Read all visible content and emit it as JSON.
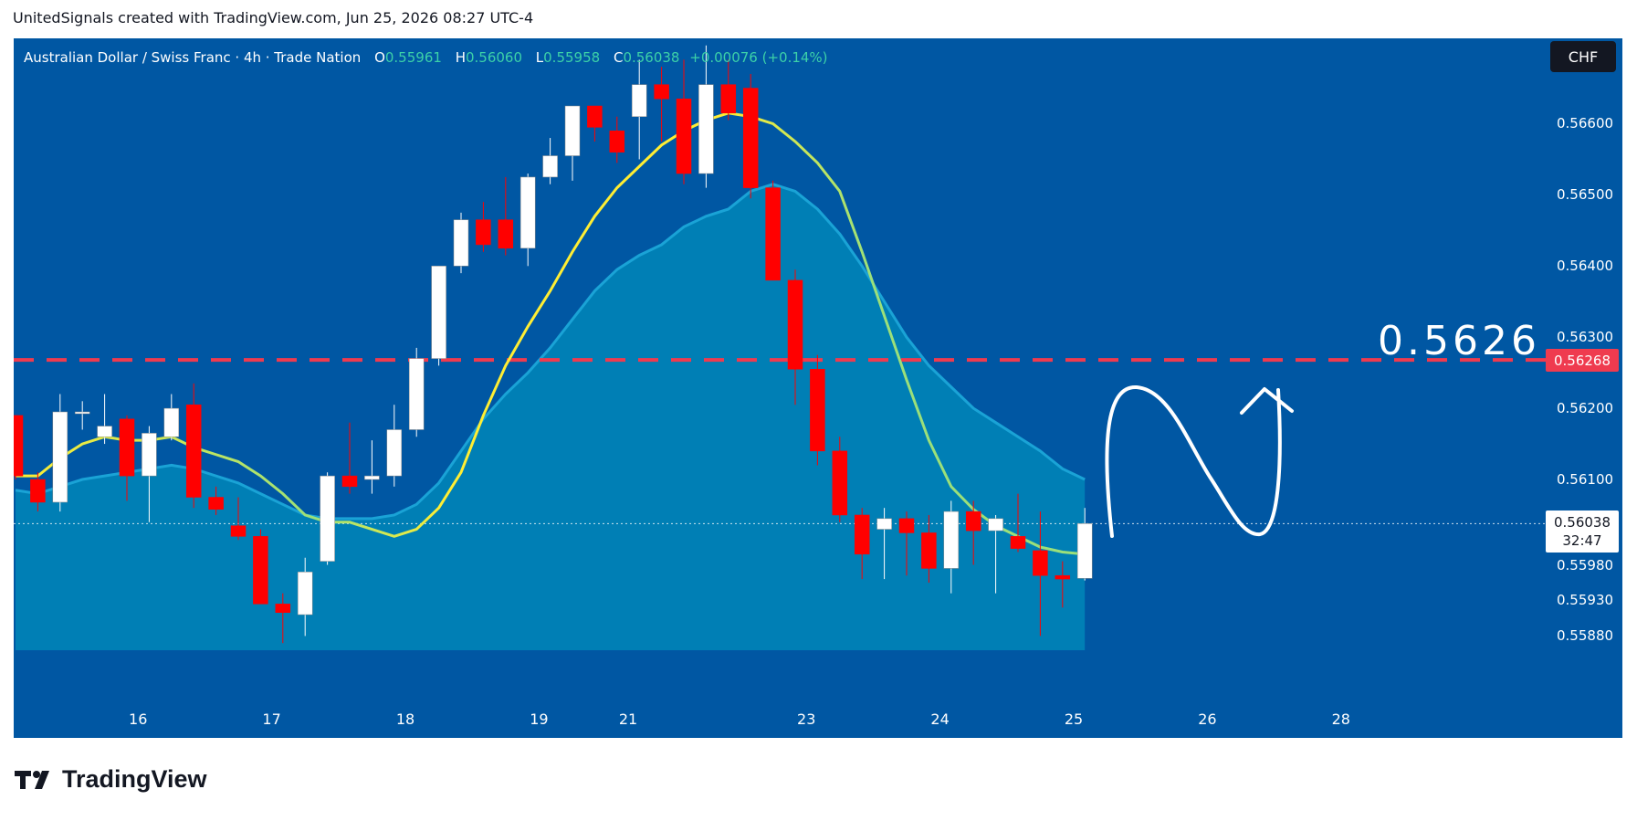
{
  "header": {
    "text": "UnitedSignals created with TradingView.com, Jun 25, 2026 08:27 UTC-4"
  },
  "legend": {
    "symbol": "Australian Dollar / Swiss Franc · 4h · Trade Nation",
    "o_label": "O",
    "o_value": "0.55961",
    "h_label": "H",
    "h_value": "0.56060",
    "l_label": "L",
    "l_value": "0.55958",
    "c_label": "C",
    "c_value": "0.56038",
    "change": "+0.00076 (+0.14%)"
  },
  "currency_badge": "CHF",
  "annotation": {
    "price_text": "0.5626"
  },
  "level_badge": "0.56268",
  "current_price": {
    "price": "0.56038",
    "countdown": "32:47"
  },
  "footer": {
    "brand": "TradingView"
  },
  "colors": {
    "background": "#0057a3",
    "up": "#ffffff",
    "down": "#ff0000",
    "level_line": "#ef3b4f",
    "ema_fast": "#ffee33",
    "area_fill": "#0086b8"
  },
  "chart_data": {
    "type": "candlestick",
    "symbol": "Australian Dollar / Swiss Franc",
    "timeframe": "4h",
    "ylim": [
      0.5586,
      0.5672
    ],
    "y_ticks": [
      "0.56600",
      "0.56500",
      "0.56400",
      "0.56300",
      "0.56200",
      "0.56100",
      "0.55980",
      "0.55930",
      "0.55880"
    ],
    "x_ticks": [
      {
        "label": "16",
        "index": 5.5
      },
      {
        "label": "17",
        "index": 11.5
      },
      {
        "label": "18",
        "index": 17.5
      },
      {
        "label": "19",
        "index": 23.5
      },
      {
        "label": "21",
        "index": 27.5
      },
      {
        "label": "23",
        "index": 35.5
      },
      {
        "label": "24",
        "index": 41.5
      },
      {
        "label": "25",
        "index": 47.5
      },
      {
        "label": "26",
        "index": 53.5
      },
      {
        "label": "28",
        "index": 59.5
      }
    ],
    "candles": [
      {
        "o": 0.5619,
        "h": 0.5619,
        "l": 0.561,
        "c": 0.56105
      },
      {
        "o": 0.561,
        "h": 0.5611,
        "l": 0.56055,
        "c": 0.56068
      },
      {
        "o": 0.56068,
        "h": 0.5622,
        "l": 0.56055,
        "c": 0.56195
      },
      {
        "o": 0.56195,
        "h": 0.5621,
        "l": 0.5617,
        "c": 0.56195
      },
      {
        "o": 0.5616,
        "h": 0.5622,
        "l": 0.5615,
        "c": 0.56175
      },
      {
        "o": 0.56185,
        "h": 0.5619,
        "l": 0.5607,
        "c": 0.56105
      },
      {
        "o": 0.56105,
        "h": 0.56175,
        "l": 0.5604,
        "c": 0.56165
      },
      {
        "o": 0.5616,
        "h": 0.5622,
        "l": 0.56155,
        "c": 0.562
      },
      {
        "o": 0.56205,
        "h": 0.56235,
        "l": 0.5606,
        "c": 0.56075
      },
      {
        "o": 0.56075,
        "h": 0.5609,
        "l": 0.5605,
        "c": 0.56058
      },
      {
        "o": 0.56035,
        "h": 0.56075,
        "l": 0.56015,
        "c": 0.5602
      },
      {
        "o": 0.5602,
        "h": 0.5603,
        "l": 0.55925,
        "c": 0.55925
      },
      {
        "o": 0.55925,
        "h": 0.5594,
        "l": 0.5587,
        "c": 0.55913
      },
      {
        "o": 0.5591,
        "h": 0.5599,
        "l": 0.5588,
        "c": 0.5597
      },
      {
        "o": 0.55985,
        "h": 0.5611,
        "l": 0.5598,
        "c": 0.56105
      },
      {
        "o": 0.56105,
        "h": 0.5618,
        "l": 0.5608,
        "c": 0.5609
      },
      {
        "o": 0.561,
        "h": 0.56155,
        "l": 0.5608,
        "c": 0.56105
      },
      {
        "o": 0.56105,
        "h": 0.56205,
        "l": 0.5609,
        "c": 0.5617
      },
      {
        "o": 0.5617,
        "h": 0.56285,
        "l": 0.5616,
        "c": 0.5627
      },
      {
        "o": 0.5627,
        "h": 0.564,
        "l": 0.5626,
        "c": 0.564
      },
      {
        "o": 0.564,
        "h": 0.56475,
        "l": 0.5639,
        "c": 0.56465
      },
      {
        "o": 0.56465,
        "h": 0.5649,
        "l": 0.5642,
        "c": 0.5643
      },
      {
        "o": 0.56465,
        "h": 0.56525,
        "l": 0.56415,
        "c": 0.56425
      },
      {
        "o": 0.56425,
        "h": 0.5653,
        "l": 0.564,
        "c": 0.56525
      },
      {
        "o": 0.56525,
        "h": 0.5658,
        "l": 0.56515,
        "c": 0.56555
      },
      {
        "o": 0.56555,
        "h": 0.56625,
        "l": 0.5652,
        "c": 0.56625
      },
      {
        "o": 0.56625,
        "h": 0.56625,
        "l": 0.56575,
        "c": 0.56595
      },
      {
        "o": 0.5659,
        "h": 0.5661,
        "l": 0.56545,
        "c": 0.5656
      },
      {
        "o": 0.5661,
        "h": 0.5669,
        "l": 0.5655,
        "c": 0.56655
      },
      {
        "o": 0.56655,
        "h": 0.5668,
        "l": 0.56575,
        "c": 0.56635
      },
      {
        "o": 0.56635,
        "h": 0.5669,
        "l": 0.56515,
        "c": 0.5653
      },
      {
        "o": 0.5653,
        "h": 0.5671,
        "l": 0.5651,
        "c": 0.56655
      },
      {
        "o": 0.56655,
        "h": 0.5669,
        "l": 0.56605,
        "c": 0.56615
      },
      {
        "o": 0.5665,
        "h": 0.5667,
        "l": 0.56495,
        "c": 0.5651
      },
      {
        "o": 0.5651,
        "h": 0.5652,
        "l": 0.5638,
        "c": 0.5638
      },
      {
        "o": 0.5638,
        "h": 0.56395,
        "l": 0.56205,
        "c": 0.56255
      },
      {
        "o": 0.56255,
        "h": 0.56275,
        "l": 0.5612,
        "c": 0.5614
      },
      {
        "o": 0.5614,
        "h": 0.5616,
        "l": 0.5604,
        "c": 0.5605
      },
      {
        "o": 0.5605,
        "h": 0.5606,
        "l": 0.5596,
        "c": 0.55995
      },
      {
        "o": 0.5603,
        "h": 0.5606,
        "l": 0.5596,
        "c": 0.56045
      },
      {
        "o": 0.56045,
        "h": 0.56055,
        "l": 0.55965,
        "c": 0.56025
      },
      {
        "o": 0.56025,
        "h": 0.5605,
        "l": 0.55955,
        "c": 0.55975
      },
      {
        "o": 0.55975,
        "h": 0.5607,
        "l": 0.5594,
        "c": 0.56055
      },
      {
        "o": 0.56055,
        "h": 0.5607,
        "l": 0.5598,
        "c": 0.56028
      },
      {
        "o": 0.56028,
        "h": 0.5605,
        "l": 0.5594,
        "c": 0.56045
      },
      {
        "o": 0.5602,
        "h": 0.5608,
        "l": 0.55998,
        "c": 0.56003
      },
      {
        "o": 0.56,
        "h": 0.56055,
        "l": 0.5588,
        "c": 0.55965
      },
      {
        "o": 0.55965,
        "h": 0.55985,
        "l": 0.5592,
        "c": 0.5596
      },
      {
        "o": 0.55961,
        "h": 0.5606,
        "l": 0.55958,
        "c": 0.56038
      }
    ],
    "ema_fast": [
      0.56105,
      0.56105,
      0.5613,
      0.5615,
      0.5616,
      0.56155,
      0.56155,
      0.5616,
      0.56145,
      0.56135,
      0.56125,
      0.56105,
      0.5608,
      0.5605,
      0.5604,
      0.5604,
      0.5603,
      0.5602,
      0.5603,
      0.5606,
      0.5611,
      0.5619,
      0.5626,
      0.56315,
      0.56365,
      0.5642,
      0.5647,
      0.5651,
      0.5654,
      0.5657,
      0.5659,
      0.56605,
      0.56615,
      0.5661,
      0.566,
      0.56575,
      0.56545,
      0.56505,
      0.5642,
      0.5633,
      0.5624,
      0.56155,
      0.5609,
      0.56058,
      0.56035,
      0.5602,
      0.56005,
      0.55998,
      0.55995
    ],
    "ema_slow": [
      0.56085,
      0.5608,
      0.5609,
      0.561,
      0.56105,
      0.5611,
      0.56115,
      0.5612,
      0.56115,
      0.56105,
      0.56095,
      0.5608,
      0.56065,
      0.5605,
      0.56045,
      0.56045,
      0.56045,
      0.5605,
      0.56065,
      0.56095,
      0.5614,
      0.56185,
      0.5622,
      0.5625,
      0.56285,
      0.56325,
      0.56365,
      0.56395,
      0.56415,
      0.5643,
      0.56455,
      0.5647,
      0.5648,
      0.56505,
      0.56515,
      0.56505,
      0.5648,
      0.56445,
      0.564,
      0.5635,
      0.563,
      0.5626,
      0.5623,
      0.562,
      0.5618,
      0.5616,
      0.5614,
      0.56115,
      0.561
    ],
    "level_line": 0.56268,
    "current_line": 0.56038
  }
}
